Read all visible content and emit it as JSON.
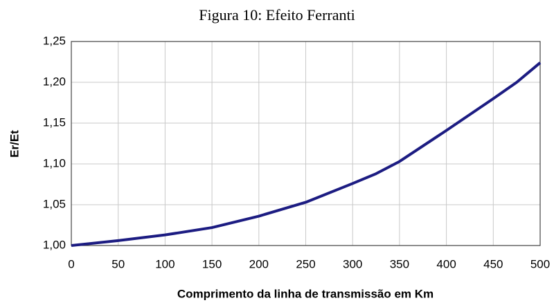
{
  "chart_data": {
    "type": "line",
    "title": "Figura 10: Efeito Ferranti",
    "x_label": "Comprimento da linha de transmissão em Km",
    "y_label": "Er/Et",
    "x": [
      0,
      50,
      100,
      150,
      200,
      250,
      300,
      325,
      350,
      400,
      450,
      475,
      500
    ],
    "series": [
      {
        "name": "Er/Et",
        "color": "#1c1c82",
        "values": [
          1.0,
          1.006,
          1.013,
          1.022,
          1.036,
          1.053,
          1.076,
          1.088,
          1.103,
          1.141,
          1.18,
          1.2,
          1.224
        ]
      }
    ],
    "xlim": [
      0,
      500
    ],
    "xticks": [
      0,
      50,
      100,
      150,
      200,
      250,
      300,
      350,
      400,
      450,
      500
    ],
    "ylim": [
      1.0,
      1.25
    ],
    "yticks": [
      {
        "value": 1.0,
        "label": "1,00"
      },
      {
        "value": 1.05,
        "label": "1,05"
      },
      {
        "value": 1.1,
        "label": "1,10"
      },
      {
        "value": 1.15,
        "label": "1,15"
      },
      {
        "value": 1.2,
        "label": "1,20"
      },
      {
        "value": 1.25,
        "label": "1,25"
      }
    ],
    "grid": true
  }
}
